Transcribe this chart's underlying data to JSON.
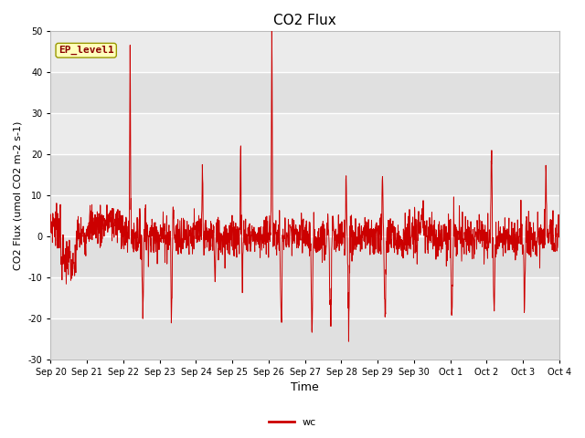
{
  "title": "CO2 Flux",
  "ylabel": "CO2 Flux (umol CO2 m-2 s-1)",
  "xlabel": "Time",
  "legend_label": "wc",
  "ep_label": "EP_level1",
  "ylim": [
    -30,
    50
  ],
  "line_color": "#cc0000",
  "bg_color": "#e0e0e0",
  "band_light": "#ebebeb",
  "xtick_labels": [
    "Sep 20",
    "Sep 21",
    "Sep 22",
    "Sep 23",
    "Sep 24",
    "Sep 25",
    "Sep 26",
    "Sep 27",
    "Sep 28",
    "Sep 29",
    "Sep 30",
    "Oct 1",
    "Oct 2",
    "Oct 3",
    "Oct 4"
  ],
  "ytick_values": [
    -30,
    -20,
    -10,
    0,
    10,
    20,
    30,
    40,
    50
  ],
  "n_points": 2000
}
